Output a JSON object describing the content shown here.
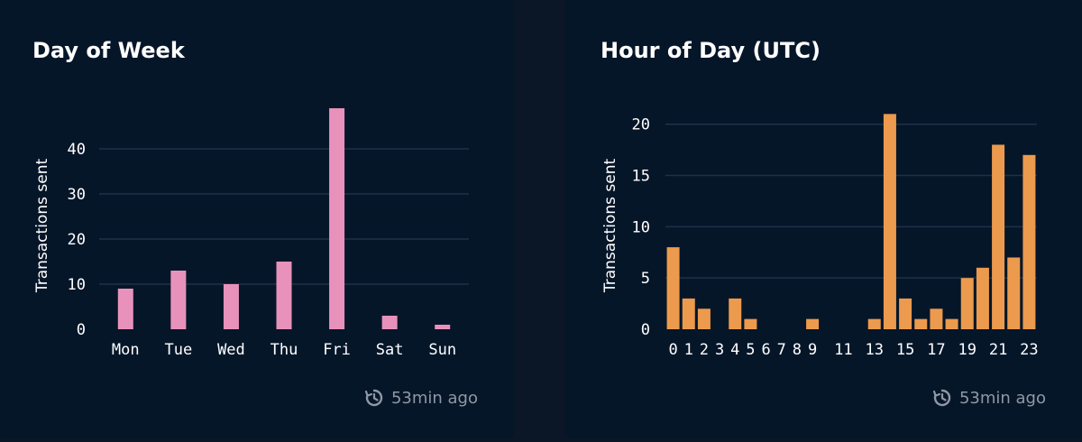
{
  "panels": [
    {
      "title": "Day of Week",
      "updated": "53min ago",
      "updated_icon": "clock-history-icon"
    },
    {
      "title": "Hour of Day (UTC)",
      "updated": "53min ago",
      "updated_icon": "clock-history-icon"
    }
  ],
  "colors": {
    "background": "#061629",
    "gridline": "#1e3148",
    "day_bar": "#e892bb",
    "hour_bar": "#ec9a4d"
  },
  "chart_data": [
    {
      "type": "bar",
      "title": "Day of Week",
      "xlabel": "",
      "ylabel": "Transactions sent",
      "categories": [
        "Mon",
        "Tue",
        "Wed",
        "Thu",
        "Fri",
        "Sat",
        "Sun"
      ],
      "values": [
        9,
        13,
        10,
        15,
        49,
        3,
        1
      ],
      "ylim": [
        0,
        50
      ],
      "yticks": [
        0,
        10,
        20,
        30,
        40
      ],
      "grid": true,
      "color": "#e892bb"
    },
    {
      "type": "bar",
      "title": "Hour of Day (UTC)",
      "xlabel": "",
      "ylabel": "Transactions sent",
      "categories": [
        "0",
        "1",
        "2",
        "3",
        "4",
        "5",
        "6",
        "7",
        "8",
        "9",
        "10",
        "11",
        "12",
        "13",
        "14",
        "15",
        "16",
        "17",
        "18",
        "19",
        "20",
        "21",
        "22",
        "23"
      ],
      "tick_labels": [
        "0",
        "1",
        "2",
        "3",
        "4",
        "5",
        "6",
        "7",
        "8",
        "9",
        "11",
        "13",
        "15",
        "17",
        "19",
        "21",
        "23"
      ],
      "values": [
        8,
        3,
        2,
        0,
        3,
        1,
        0,
        0,
        0,
        1,
        0,
        0,
        0,
        1,
        21,
        3,
        1,
        2,
        1,
        5,
        6,
        18,
        7,
        17
      ],
      "ylim": [
        0,
        22
      ],
      "yticks": [
        0,
        5,
        10,
        15,
        20
      ],
      "grid": true,
      "color": "#ec9a4d"
    }
  ]
}
